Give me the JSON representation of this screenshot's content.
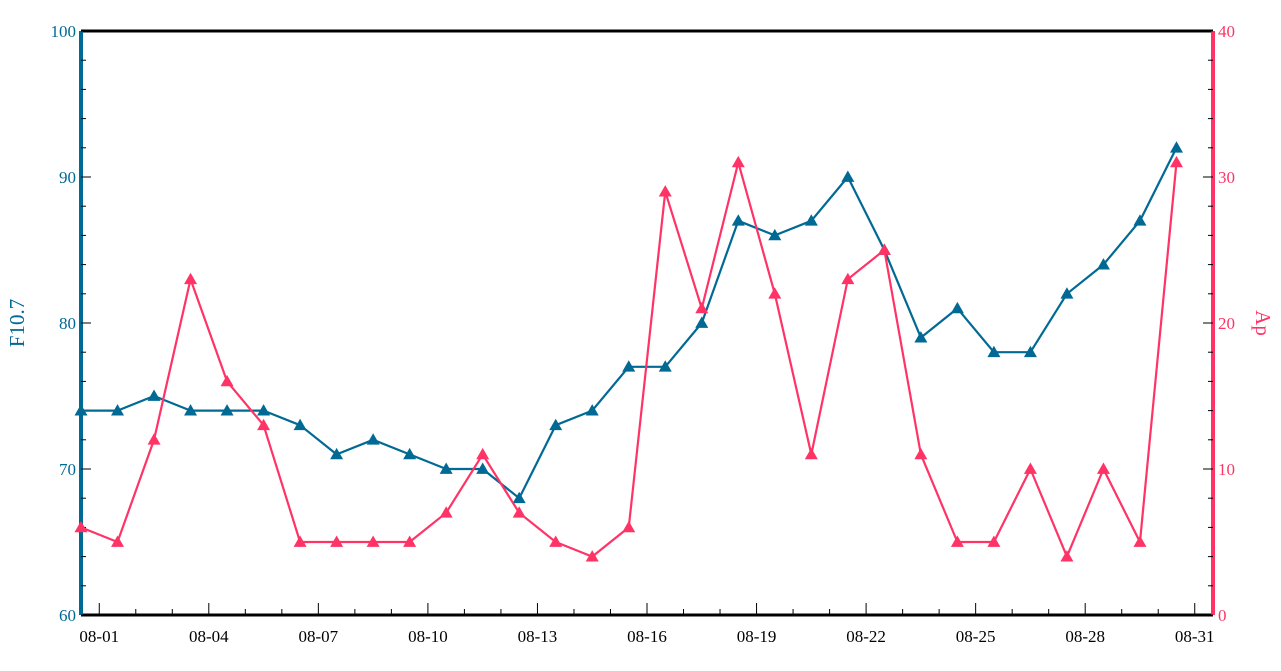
{
  "chart_data": {
    "type": "line",
    "title": "",
    "x_tick_labels": [
      "08-01",
      "08-04",
      "08-07",
      "08-10",
      "08-13",
      "08-16",
      "08-19",
      "08-22",
      "08-25",
      "08-28",
      "08-31"
    ],
    "x_tick_dates": [
      "2023-08-01",
      "2023-08-04",
      "2023-08-07",
      "2023-08-10",
      "2023-08-13",
      "2023-08-16",
      "2023-08-19",
      "2023-08-22",
      "2023-08-25",
      "2023-08-28",
      "2023-08-31"
    ],
    "xlim": [
      "2023-07-31T12:00",
      "2023-08-31T12:00"
    ],
    "x": [
      "2023-07-31T12:00",
      "2023-08-01T12:00",
      "2023-08-02T12:00",
      "2023-08-03T12:00",
      "2023-08-04T12:00",
      "2023-08-05T12:00",
      "2023-08-06T12:00",
      "2023-08-07T12:00",
      "2023-08-08T12:00",
      "2023-08-09T12:00",
      "2023-08-10T12:00",
      "2023-08-11T12:00",
      "2023-08-12T12:00",
      "2023-08-13T12:00",
      "2023-08-14T12:00",
      "2023-08-15T12:00",
      "2023-08-16T12:00",
      "2023-08-17T12:00",
      "2023-08-18T12:00",
      "2023-08-19T12:00",
      "2023-08-20T12:00",
      "2023-08-21T12:00",
      "2023-08-22T12:00",
      "2023-08-23T12:00",
      "2023-08-24T12:00",
      "2023-08-25T12:00",
      "2023-08-26T12:00",
      "2023-08-27T12:00",
      "2023-08-28T12:00",
      "2023-08-29T12:00",
      "2023-08-30T12:00"
    ],
    "series": [
      {
        "name": "F10.7",
        "axis": "left",
        "color": "#006994",
        "marker": "triangle",
        "values": [
          74,
          74,
          75,
          74,
          74,
          74,
          73,
          71,
          72,
          71,
          70,
          70,
          68,
          73,
          74,
          77,
          77,
          80,
          87,
          86,
          87,
          90,
          85,
          79,
          81,
          78,
          78,
          82,
          84,
          87,
          92
        ]
      },
      {
        "name": "Ap",
        "axis": "right",
        "color": "#ff3366",
        "marker": "triangle",
        "values": [
          6,
          5,
          12,
          23,
          16,
          13,
          5,
          5,
          5,
          5,
          7,
          11,
          7,
          5,
          4,
          6,
          29,
          21,
          31,
          22,
          11,
          23,
          25,
          11,
          5,
          5,
          10,
          4,
          10,
          5,
          31
        ]
      }
    ],
    "y_left": {
      "label": "F10.7",
      "ylim": [
        60,
        100
      ],
      "ticks": [
        60,
        70,
        80,
        90,
        100
      ],
      "color": "#006994"
    },
    "y_right": {
      "label": "Ap",
      "ylim": [
        0,
        40
      ],
      "ticks": [
        0,
        10,
        20,
        30,
        40
      ],
      "color": "#ff3366"
    },
    "grid": false,
    "legend": "none"
  }
}
